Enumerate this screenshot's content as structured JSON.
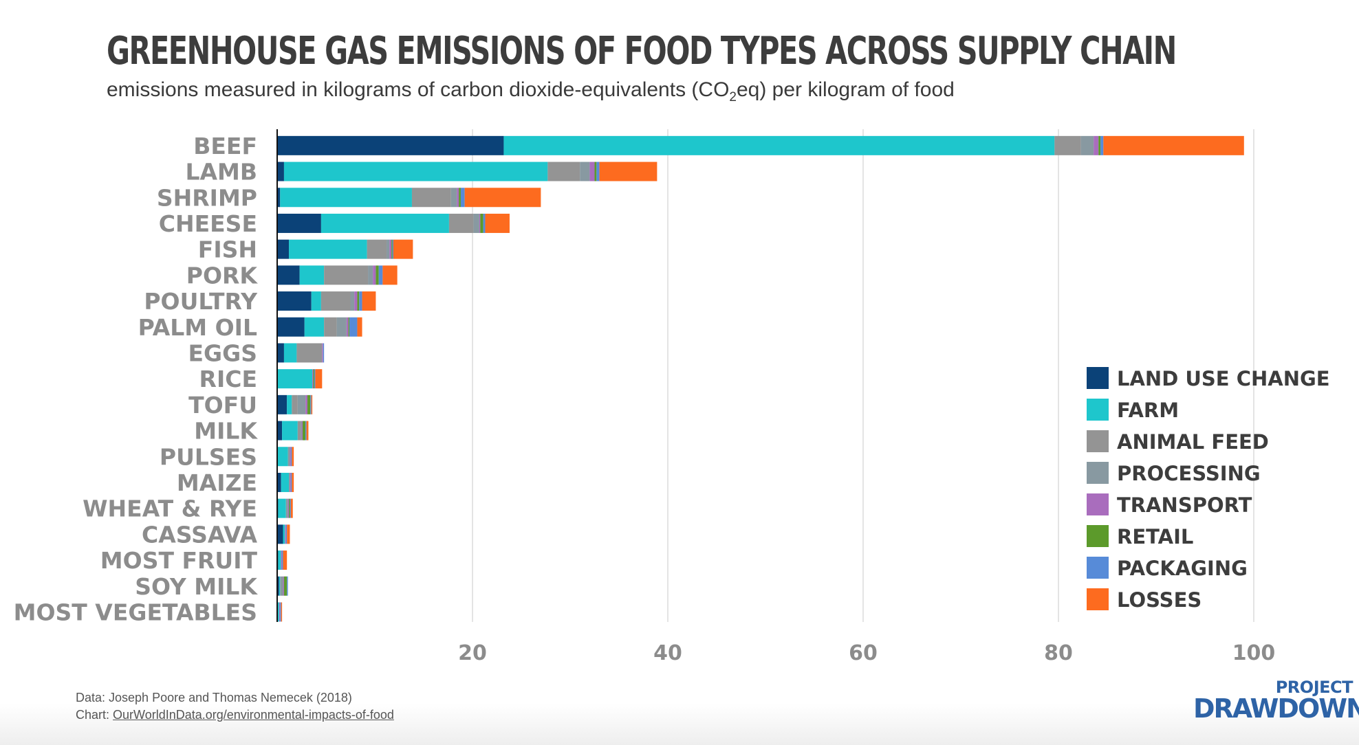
{
  "title": "GREENHOUSE GAS EMISSIONS OF FOOD TYPES ACROSS SUPPLY CHAIN",
  "subtitle": {
    "before": "emissions measured in kilograms of carbon dioxide-equivalents (CO",
    "sub": "2",
    "after": "eq) per kilogram of food"
  },
  "source": {
    "data_line": "Data: Joseph Poore and Thomas Nemecek (2018)",
    "chart_prefix": "Chart: ",
    "chart_link": "OurWorldInData.org/environmental-impacts-of-food"
  },
  "logo": {
    "top": "PROJECT",
    "bottom": "DRAWDOWN"
  },
  "chart_data": {
    "type": "bar",
    "orientation": "horizontal",
    "stacked": true,
    "title": "GREENHOUSE GAS EMISSIONS OF FOOD TYPES ACROSS SUPPLY CHAIN",
    "xlabel": "",
    "ylabel": "",
    "xlim": [
      0,
      100
    ],
    "xticks": [
      20,
      40,
      60,
      80,
      100
    ],
    "grid": true,
    "legend_position": "right",
    "categories": [
      "BEEF",
      "LAMB",
      "SHRIMP",
      "CHEESE",
      "FISH",
      "PORK",
      "POULTRY",
      "PALM OIL",
      "EGGS",
      "RICE",
      "TOFU",
      "MILK",
      "PULSES",
      "MAIZE",
      "WHEAT & RYE",
      "CASSAVA",
      "MOST FRUIT",
      "SOY MILK",
      "MOST VEGETABLES"
    ],
    "series": [
      {
        "name": "LAND USE CHANGE",
        "color": "#0b4278",
        "values": [
          23.2,
          0.7,
          0.3,
          4.5,
          1.2,
          2.3,
          3.5,
          2.8,
          0.7,
          0.0,
          1.0,
          0.5,
          0.0,
          0.4,
          0.1,
          0.6,
          0.1,
          0.2,
          0.0
        ]
      },
      {
        "name": "FARM",
        "color": "#1ec6cc",
        "values": [
          56.4,
          27.0,
          13.5,
          13.1,
          8.0,
          2.5,
          1.0,
          2.0,
          1.3,
          3.6,
          0.5,
          1.6,
          1.1,
          0.8,
          0.8,
          0.2,
          0.3,
          0.1,
          0.2
        ]
      },
      {
        "name": "ANIMAL FEED",
        "color": "#949494",
        "values": [
          2.7,
          3.3,
          4.0,
          2.5,
          2.0,
          4.5,
          3.0,
          1.3,
          2.6,
          0.0,
          0.6,
          0.3,
          0.0,
          0.0,
          0.0,
          0.0,
          0.0,
          0.0,
          0.0
        ]
      },
      {
        "name": "PROCESSING",
        "color": "#8899a1",
        "values": [
          1.3,
          1.0,
          0.6,
          0.6,
          0.3,
          0.5,
          0.4,
          1.0,
          0.0,
          0.0,
          0.8,
          0.1,
          0.2,
          0.1,
          0.2,
          0.0,
          0.0,
          0.3,
          0.0
        ]
      },
      {
        "name": "TRANSPORT",
        "color": "#a96dbd",
        "values": [
          0.5,
          0.5,
          0.2,
          0.1,
          0.2,
          0.3,
          0.3,
          0.2,
          0.1,
          0.1,
          0.2,
          0.1,
          0.1,
          0.1,
          0.1,
          0.1,
          0.1,
          0.1,
          0.1
        ]
      },
      {
        "name": "RETAIL",
        "color": "#5c9a2b",
        "values": [
          0.2,
          0.2,
          0.2,
          0.3,
          0.1,
          0.3,
          0.2,
          0.1,
          0.0,
          0.1,
          0.3,
          0.3,
          0.0,
          0.0,
          0.1,
          0.0,
          0.0,
          0.3,
          0.0
        ]
      },
      {
        "name": "PACKAGING",
        "color": "#578bd8",
        "values": [
          0.3,
          0.3,
          0.4,
          0.2,
          0.1,
          0.4,
          0.3,
          0.8,
          0.1,
          0.1,
          0.1,
          0.1,
          0.1,
          0.1,
          0.1,
          0.1,
          0.1,
          0.1,
          0.1
        ]
      },
      {
        "name": "LOSSES",
        "color": "#fd6b1f",
        "values": [
          14.4,
          5.9,
          7.8,
          2.5,
          2.0,
          1.5,
          1.4,
          0.5,
          0.0,
          0.7,
          0.1,
          0.2,
          0.2,
          0.2,
          0.2,
          0.3,
          0.4,
          0.0,
          0.1
        ]
      }
    ]
  }
}
